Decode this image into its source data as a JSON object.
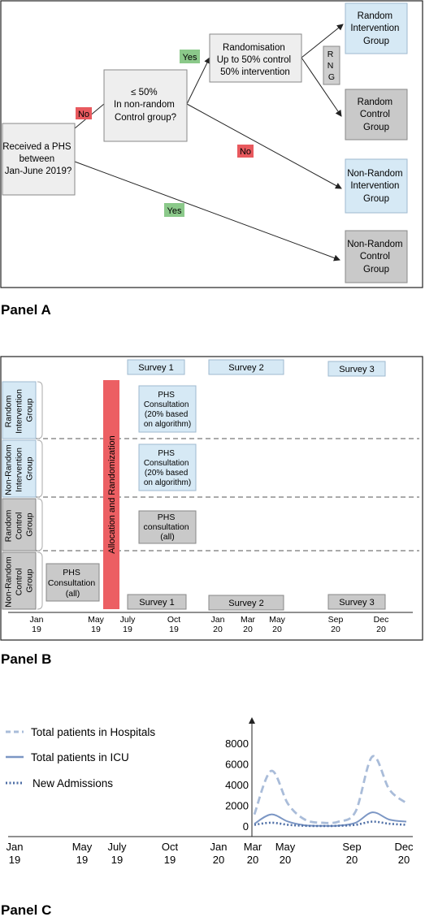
{
  "panelA": {
    "label": "Panel A",
    "received": [
      "Received a PHS",
      "between",
      "Jan-June 2019?"
    ],
    "threshold": [
      "≤ 50%",
      "In non-random",
      "Control group?"
    ],
    "randomisation": [
      "Randomisation",
      "Up to 50% control",
      "50% intervention"
    ],
    "rng": [
      "R",
      "N",
      "G"
    ],
    "random_intervention": [
      "Random",
      "Intervention",
      "Group"
    ],
    "random_control": [
      "Random",
      "Control",
      "Group"
    ],
    "nonrandom_intervention": [
      "Non-Random",
      "Intervention",
      "Group"
    ],
    "nonrandom_control": [
      "Non-Random",
      "Control",
      "Group"
    ],
    "yes": "Yes",
    "no": "No"
  },
  "panelB": {
    "label": "Panel B",
    "surveys_top": [
      "Survey 1",
      "Survey 2",
      "Survey 3"
    ],
    "surveys_bottom": [
      "Survey 1",
      "Survey 2",
      "Survey 3"
    ],
    "groups": [
      [
        "Random",
        "Intervention",
        "Group"
      ],
      [
        "Non-Random",
        "Intervention",
        "Group"
      ],
      [
        "Random",
        "Control",
        "Group"
      ],
      [
        "Non-Random",
        "Control",
        "Group"
      ]
    ],
    "allocation": "Allocation and Randomization",
    "consult_random_int": [
      "PHS",
      "Consultation",
      "(20% based",
      "on algorithm)"
    ],
    "consult_nonrandom_int": [
      "PHS",
      "Consultation",
      "(20% based",
      "on algorithm)"
    ],
    "consult_random_ctrl": [
      "PHS",
      "consultation",
      "(all)"
    ],
    "consult_nonrandom_ctrl": [
      "PHS",
      "Consultation",
      "(all)"
    ],
    "ticks": [
      [
        "Jan",
        "19"
      ],
      [
        "May",
        "19"
      ],
      [
        "July",
        "19"
      ],
      [
        "Oct",
        "19"
      ],
      [
        "Jan",
        "20"
      ],
      [
        "Mar",
        "20"
      ],
      [
        "May",
        "20"
      ],
      [
        "Sep",
        "20"
      ],
      [
        "Dec",
        "20"
      ]
    ]
  },
  "panelC": {
    "label": "Panel C",
    "ticks": [
      [
        "Jan",
        "19"
      ],
      [
        "May",
        "19"
      ],
      [
        "July",
        "19"
      ],
      [
        "Oct",
        "19"
      ],
      [
        "Jan",
        "20"
      ],
      [
        "Mar",
        "20"
      ],
      [
        "May",
        "20"
      ],
      [
        "Sep",
        "20"
      ],
      [
        "Dec",
        "20"
      ]
    ]
  },
  "chart_data": {
    "type": "line",
    "title": "",
    "xlabel": "",
    "ylabel": "",
    "ylim": [
      0,
      8000
    ],
    "yticks": [
      0,
      2000,
      4000,
      6000,
      8000
    ],
    "grid": false,
    "legend_position": "top-left",
    "x": [
      "Mar 20",
      "Apr 20",
      "May 20",
      "Jun 20",
      "Jul 20",
      "Aug 20",
      "Sep 20",
      "Oct 20",
      "Nov 20",
      "Dec 20"
    ],
    "series": [
      {
        "name": "Total patients in Hospitals",
        "style": "dashed",
        "color": "#a9bcd9",
        "values": [
          1200,
          5400,
          2200,
          700,
          400,
          500,
          1500,
          6800,
          3600,
          2300
        ]
      },
      {
        "name": "Total patients in ICU",
        "style": "solid",
        "color": "#7b96c4",
        "values": [
          300,
          1200,
          500,
          150,
          100,
          120,
          400,
          1400,
          700,
          500
        ]
      },
      {
        "name": "New Admissions",
        "style": "dotted",
        "color": "#4f6fa6",
        "values": [
          200,
          400,
          200,
          100,
          80,
          100,
          200,
          500,
          300,
          200
        ]
      }
    ]
  }
}
